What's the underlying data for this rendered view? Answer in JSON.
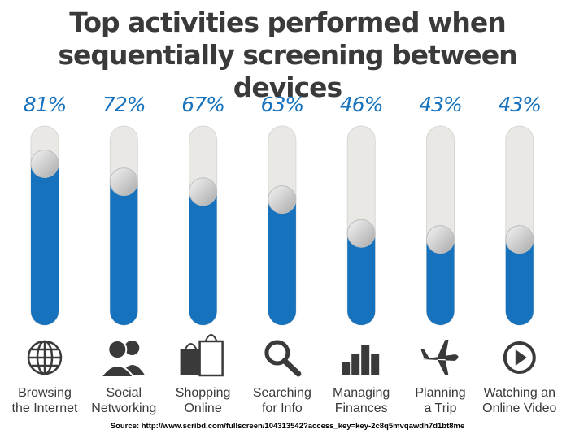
{
  "title_lines": [
    "Top activities performed when",
    "sequentially screening between devices"
  ],
  "source": "Source: http://www.scribd.com/fullscreen/104313542?access_key=key-2c8q5mvqawdh7d1bt8me",
  "colors": {
    "fill": "#1672bd",
    "track": "#e9e8e5",
    "knob": "#d4d4d4",
    "text": "#3a3a3a"
  },
  "chart_data": {
    "type": "bar",
    "orientation": "vertical",
    "ylim": [
      0,
      100
    ],
    "unit": "%",
    "categories": [
      "Browsing the Internet",
      "Social Networking",
      "Shopping Online",
      "Searching for Info",
      "Managing Finances",
      "Planning a Trip",
      "Watching an Online Video"
    ],
    "label_lines": [
      [
        "Browsing",
        "the Internet"
      ],
      [
        "Social",
        "Networking"
      ],
      [
        "Shopping",
        "Online"
      ],
      [
        "Searching",
        "for Info"
      ],
      [
        "Managing",
        "Finances"
      ],
      [
        "Planning",
        "a Trip"
      ],
      [
        "Watching an",
        "Online Video"
      ]
    ],
    "values": [
      81,
      72,
      67,
      63,
      46,
      43,
      43
    ],
    "value_labels": [
      "81%",
      "72%",
      "67%",
      "63%",
      "46%",
      "43%",
      "43%"
    ],
    "icons": [
      "globe-icon",
      "people-icon",
      "shopping-bag-icon",
      "magnifier-icon",
      "bar-chart-icon",
      "airplane-icon",
      "play-icon"
    ]
  }
}
